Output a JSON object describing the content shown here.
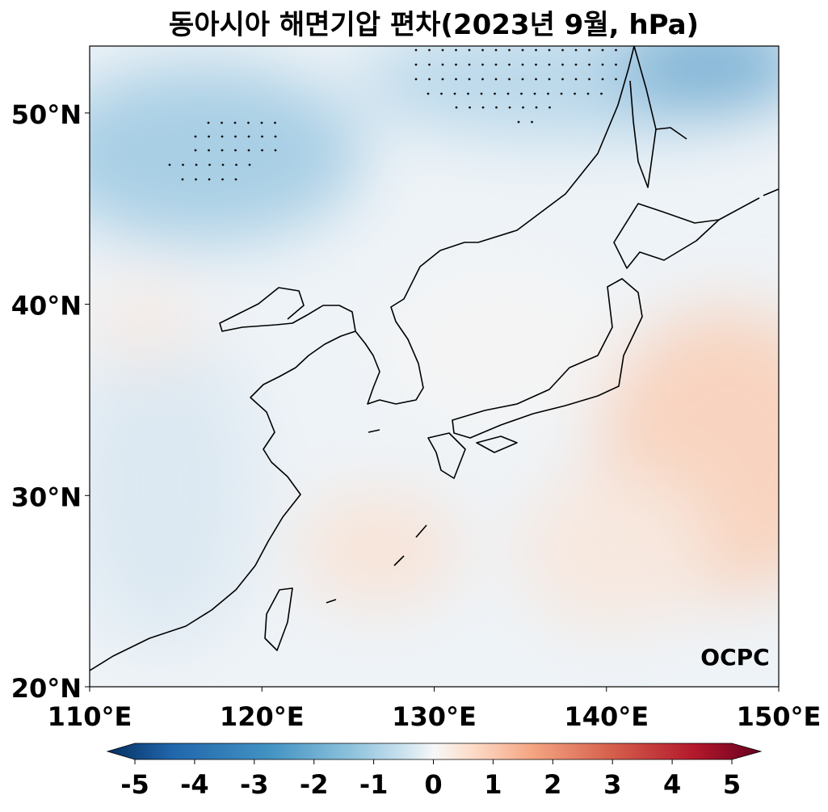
{
  "title": "동아시아 해면기압 편차(2023년 9월, hPa)",
  "map": {
    "xlim": [
      110,
      150
    ],
    "ylim": [
      20,
      53.5
    ],
    "xticks": [
      {
        "value": 110,
        "label": "110°E"
      },
      {
        "value": 120,
        "label": "120°E"
      },
      {
        "value": 130,
        "label": "130°E"
      },
      {
        "value": 140,
        "label": "140°E"
      },
      {
        "value": 150,
        "label": "150°E"
      }
    ],
    "yticks": [
      {
        "value": 20,
        "label": "20°N"
      },
      {
        "value": 30,
        "label": "30°N"
      },
      {
        "value": 40,
        "label": "40°N"
      },
      {
        "value": 50,
        "label": "50°N"
      }
    ]
  },
  "colorbar": {
    "range": [
      -5,
      5
    ],
    "ticks": [
      -5,
      -4,
      -3,
      -2,
      -1,
      0,
      1,
      2,
      3,
      4,
      5
    ]
  },
  "logo": "OCPC"
}
